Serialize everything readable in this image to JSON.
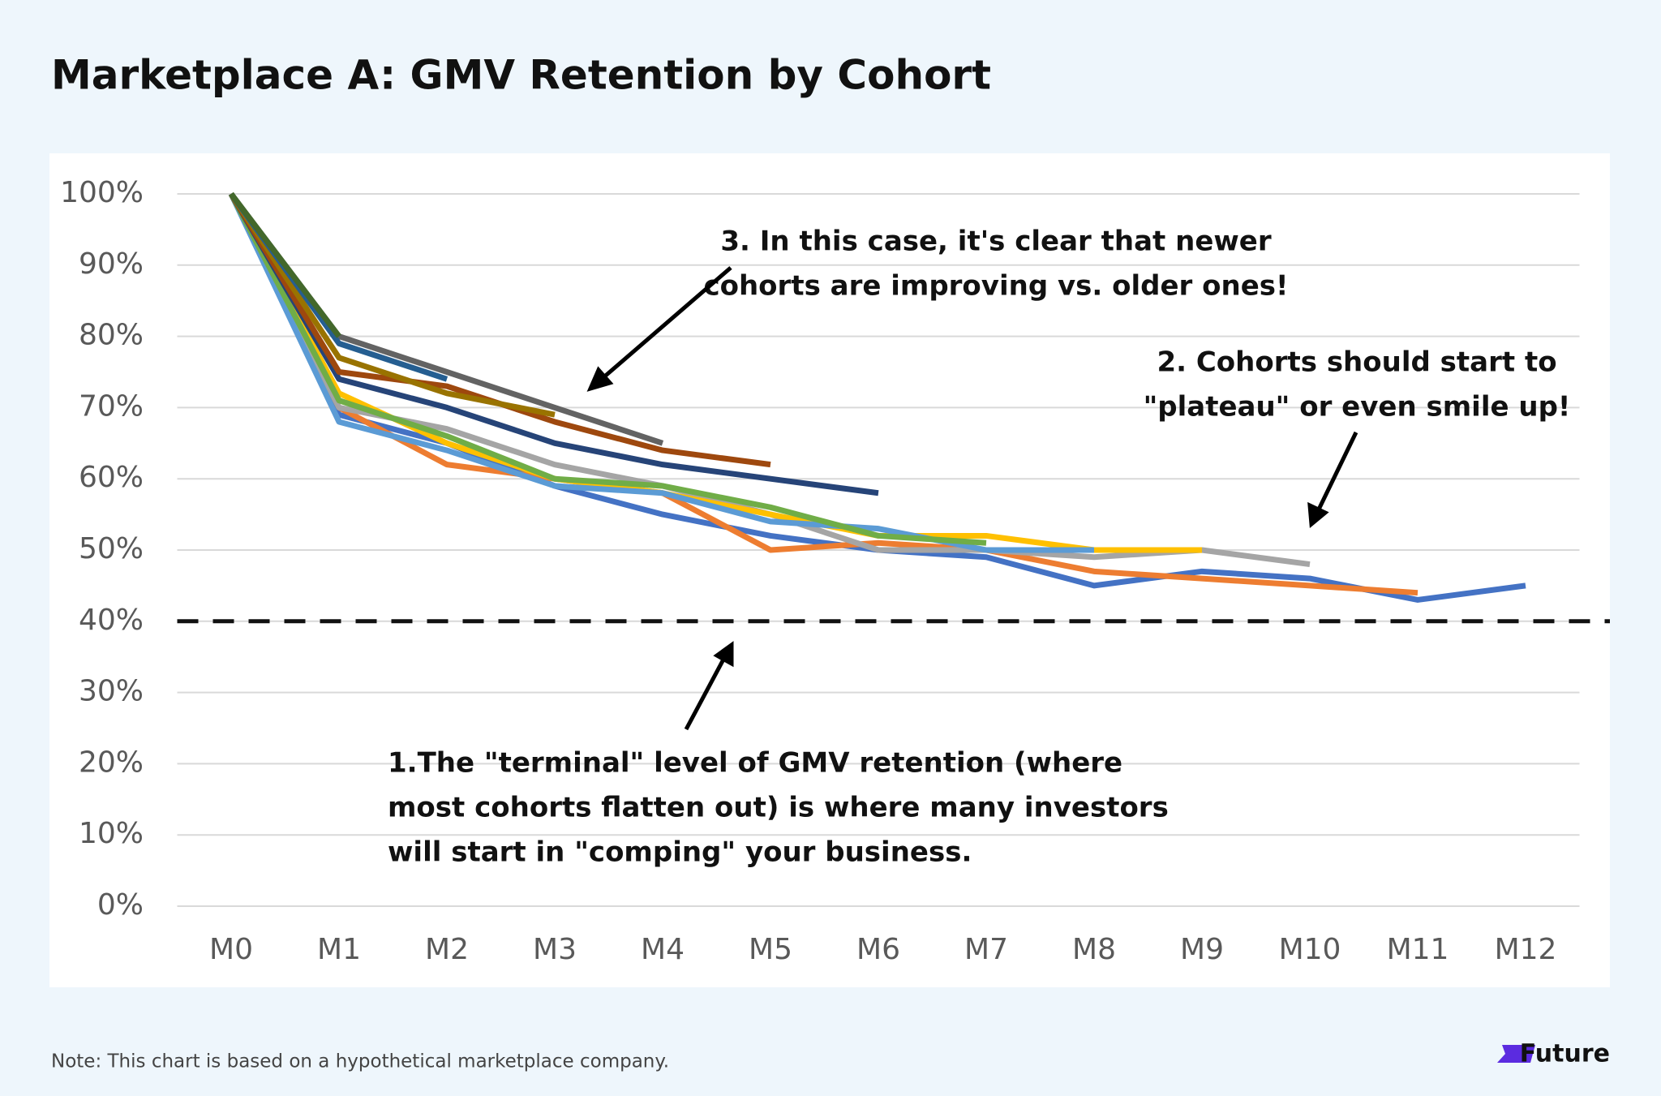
{
  "title": "Marketplace A: GMV Retention by Cohort",
  "chart_data": {
    "type": "line",
    "categories": [
      "M0",
      "M1",
      "M2",
      "M3",
      "M4",
      "M5",
      "M6",
      "M7",
      "M8",
      "M9",
      "M10",
      "M11",
      "M12"
    ],
    "series": [
      {
        "color": "#4472c4",
        "values": [
          100,
          69,
          65,
          59,
          55,
          52,
          50,
          49,
          45,
          47,
          46,
          43,
          45
        ]
      },
      {
        "color": "#ed7d31",
        "values": [
          100,
          70,
          62,
          60,
          58,
          50,
          51,
          50,
          47,
          46,
          45,
          44,
          null
        ]
      },
      {
        "color": "#a5a5a5",
        "values": [
          100,
          70,
          67,
          62,
          59,
          55,
          50,
          50,
          49,
          50,
          48,
          null,
          null
        ]
      },
      {
        "color": "#ffc000",
        "values": [
          100,
          72,
          65,
          60,
          58,
          55,
          52,
          52,
          50,
          50,
          null,
          null,
          null
        ]
      },
      {
        "color": "#5b9bd5",
        "values": [
          100,
          68,
          64,
          59,
          58,
          54,
          53,
          50,
          50,
          null,
          null,
          null,
          null
        ]
      },
      {
        "color": "#70ad47",
        "values": [
          100,
          71,
          66,
          60,
          59,
          56,
          52,
          51,
          null,
          null,
          null,
          null,
          null
        ]
      },
      {
        "color": "#264478",
        "values": [
          100,
          74,
          70,
          65,
          62,
          60,
          58,
          null,
          null,
          null,
          null,
          null,
          null
        ]
      },
      {
        "color": "#9e480e",
        "values": [
          100,
          75,
          73,
          68,
          64,
          62,
          null,
          null,
          null,
          null,
          null,
          null,
          null
        ]
      },
      {
        "color": "#636363",
        "values": [
          100,
          80,
          75,
          70,
          65,
          null,
          null,
          null,
          null,
          null,
          null,
          null,
          null
        ]
      },
      {
        "color": "#997300",
        "values": [
          100,
          77,
          72,
          69,
          null,
          null,
          null,
          null,
          null,
          null,
          null,
          null,
          null
        ]
      },
      {
        "color": "#255e91",
        "values": [
          100,
          79,
          74,
          null,
          null,
          null,
          null,
          null,
          null,
          null,
          null,
          null,
          null
        ]
      },
      {
        "color": "#43682b",
        "values": [
          100,
          80,
          null,
          null,
          null,
          null,
          null,
          null,
          null,
          null,
          null,
          null,
          null
        ]
      }
    ],
    "ylim": [
      0,
      100
    ],
    "yticks": [
      {
        "value": 0,
        "label": "0%"
      },
      {
        "value": 10,
        "label": "10%"
      },
      {
        "value": 20,
        "label": "20%"
      },
      {
        "value": 30,
        "label": "30%"
      },
      {
        "value": 40,
        "label": "40%"
      },
      {
        "value": 50,
        "label": "50%"
      },
      {
        "value": 60,
        "label": "60%"
      },
      {
        "value": 70,
        "label": "70%"
      },
      {
        "value": 80,
        "label": "80%"
      },
      {
        "value": 90,
        "label": "90%"
      },
      {
        "value": 100,
        "label": "100%"
      }
    ],
    "grid": true,
    "reference_line": 40,
    "annotations": [
      {
        "lines": [
          "3. In this case, it's clear that newer",
          "cohorts are improving vs. older ones!"
        ]
      },
      {
        "lines": [
          "2. Cohorts should start to",
          "\"plateau\" or even smile up!"
        ]
      },
      {
        "lines": [
          "1.The \"terminal\" level of GMV retention (where",
          "most cohorts flatten out) is where many investors",
          "will start in \"comping\" your business."
        ]
      }
    ]
  },
  "note": "Note: This chart is based on a hypothetical marketplace company.",
  "logo": "Future"
}
